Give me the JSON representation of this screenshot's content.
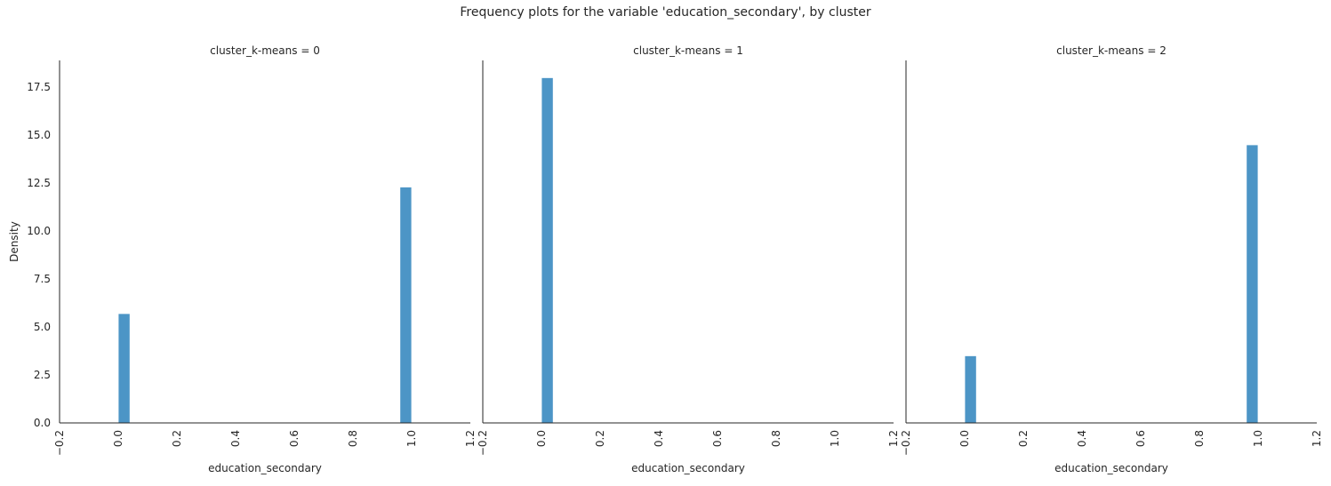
{
  "chart_data": {
    "type": "bar",
    "title": "Frequency plots for the variable 'education_secondary', by cluster",
    "ylabel": "Density",
    "xlabel": "education_secondary",
    "xlim": [
      -0.2,
      1.2
    ],
    "ylim": [
      0,
      18.9
    ],
    "x_ticks": [
      "−0.2",
      "0.0",
      "0.2",
      "0.4",
      "0.6",
      "0.8",
      "1.0",
      "1.2"
    ],
    "y_ticks": [
      "0.0",
      "2.5",
      "5.0",
      "7.5",
      "10.0",
      "12.5",
      "15.0",
      "17.5"
    ],
    "bar_color": "#4C95C6",
    "grid": false,
    "panels": [
      {
        "title": "cluster_k-means = 0",
        "bars": [
          {
            "x": 0.0,
            "width": 0.04,
            "value": 5.7
          },
          {
            "x": 0.96,
            "width": 0.04,
            "value": 12.3
          }
        ]
      },
      {
        "title": "cluster_k-means = 1",
        "bars": [
          {
            "x": 0.0,
            "width": 0.04,
            "value": 18.0
          }
        ]
      },
      {
        "title": "cluster_k-means = 2",
        "bars": [
          {
            "x": 0.0,
            "width": 0.04,
            "value": 3.5
          },
          {
            "x": 0.96,
            "width": 0.04,
            "value": 14.5
          }
        ]
      }
    ]
  }
}
